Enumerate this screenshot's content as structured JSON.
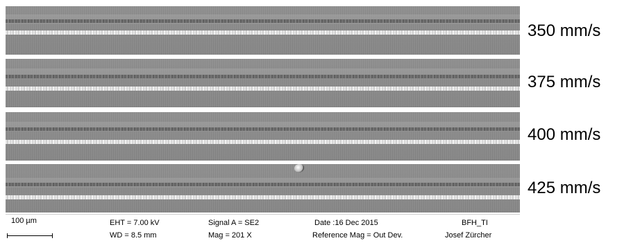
{
  "images": [
    {
      "speed_label": "350 mm/s"
    },
    {
      "speed_label": "375 mm/s"
    },
    {
      "speed_label": "400 mm/s"
    },
    {
      "speed_label": "425 mm/s"
    }
  ],
  "info_bar": {
    "scale": "100 µm",
    "eht": "EHT =  7.00 kV",
    "wd": "WD =  8.5 mm",
    "signal": "Signal A = SE2",
    "mag": "Mag =    201 X",
    "date": "Date :16 Dec 2015",
    "ref_mag": "Reference Mag = Out Dev.",
    "institution": "BFH_TI",
    "operator": "Josef Zürcher"
  }
}
